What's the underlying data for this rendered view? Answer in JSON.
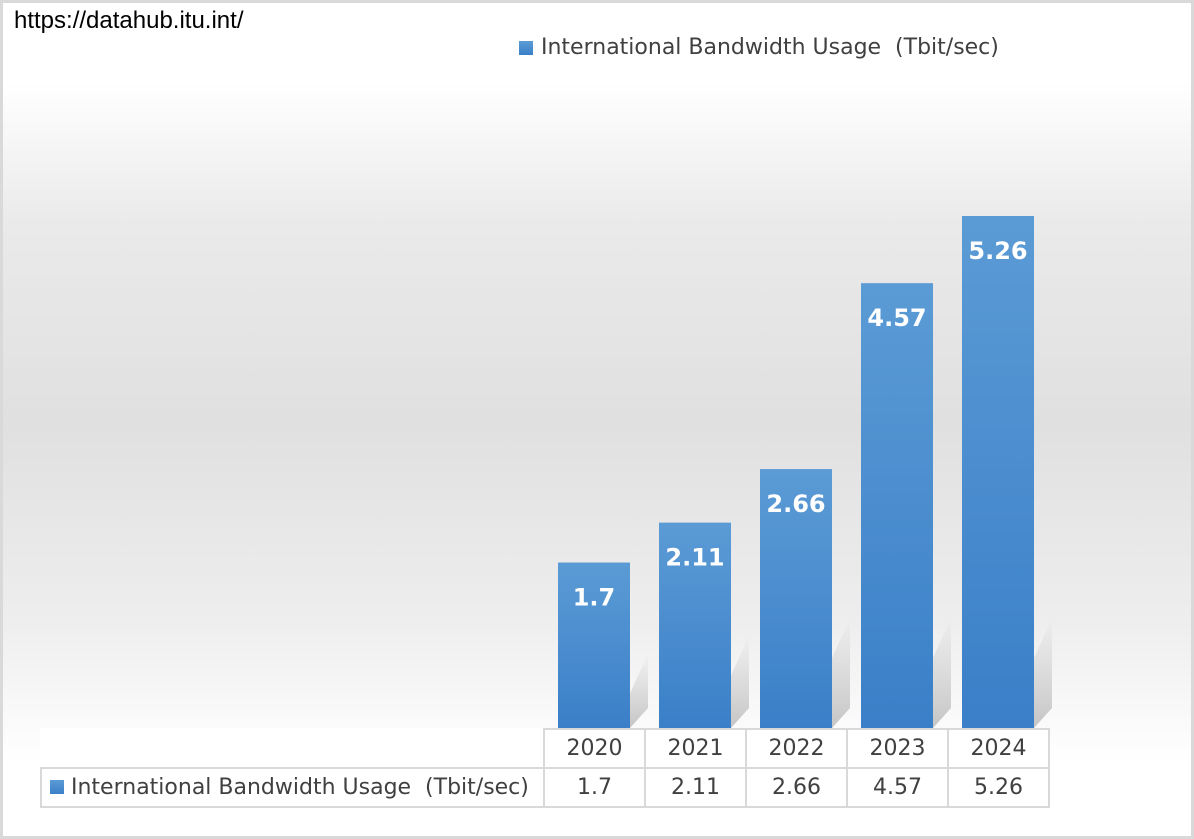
{
  "source_url": "https://datahub.itu.int/",
  "colors": {
    "bar_top": "#5b9bd5",
    "bar_bottom": "#3a7fc8",
    "label": "#ffffff"
  },
  "chart_data": {
    "type": "bar",
    "categories": [
      "2020",
      "2021",
      "2022",
      "2023",
      "2024"
    ],
    "series": [
      {
        "name": "International Bandwidth Usage  (Tbit/sec)",
        "values": [
          1.7,
          2.11,
          2.66,
          4.57,
          5.26
        ]
      }
    ],
    "data_labels": [
      "1.7",
      "2.11",
      "2.66",
      "4.57",
      "5.26"
    ],
    "legend": "top",
    "grid": false,
    "data_table": true
  },
  "table": {
    "years": [
      "2020",
      "2021",
      "2022",
      "2023",
      "2024"
    ],
    "series_label": "International Bandwidth Usage  (Tbit/sec)",
    "values": [
      "1.7",
      "2.11",
      "2.66",
      "4.57",
      "5.26"
    ]
  }
}
